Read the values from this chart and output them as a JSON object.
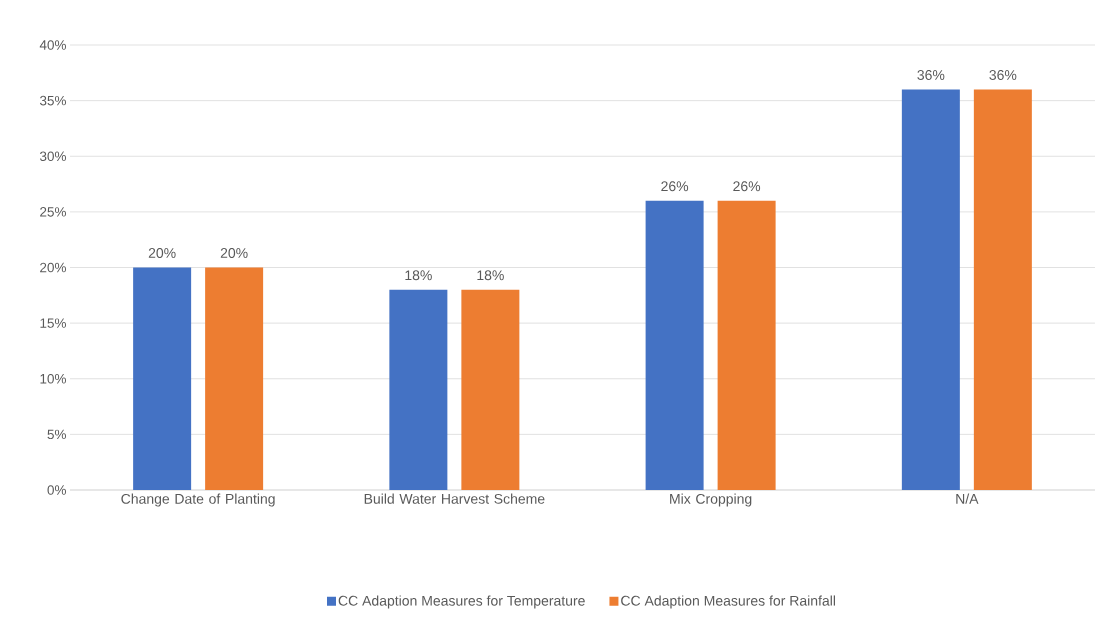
{
  "chart_data": {
    "type": "bar",
    "categories": [
      "Change Date of Planting",
      "Build Water Harvest Scheme",
      "Mix Cropping",
      "N/A"
    ],
    "series": [
      {
        "name": "CC Adaption Measures for Temperature",
        "color": "#4472c4",
        "values": [
          20,
          18,
          26,
          36
        ],
        "value_labels": [
          "20%",
          "18%",
          "26%",
          "36%"
        ]
      },
      {
        "name": "CC Adaption Measures for Rainfall",
        "color": "#ed7d31",
        "values": [
          20,
          18,
          26,
          36
        ],
        "value_labels": [
          "20%",
          "18%",
          "26%",
          "36%"
        ]
      }
    ],
    "ylim": [
      0,
      40
    ],
    "yticks": [
      {
        "value": 0,
        "label": "0%"
      },
      {
        "value": 5,
        "label": "5%"
      },
      {
        "value": 10,
        "label": "10%"
      },
      {
        "value": 15,
        "label": "15%"
      },
      {
        "value": 20,
        "label": "20%"
      },
      {
        "value": 25,
        "label": "25%"
      },
      {
        "value": 30,
        "label": "30%"
      },
      {
        "value": 35,
        "label": "35%"
      },
      {
        "value": 40,
        "label": "40%"
      }
    ],
    "grid": "y",
    "legend": "bottom"
  }
}
